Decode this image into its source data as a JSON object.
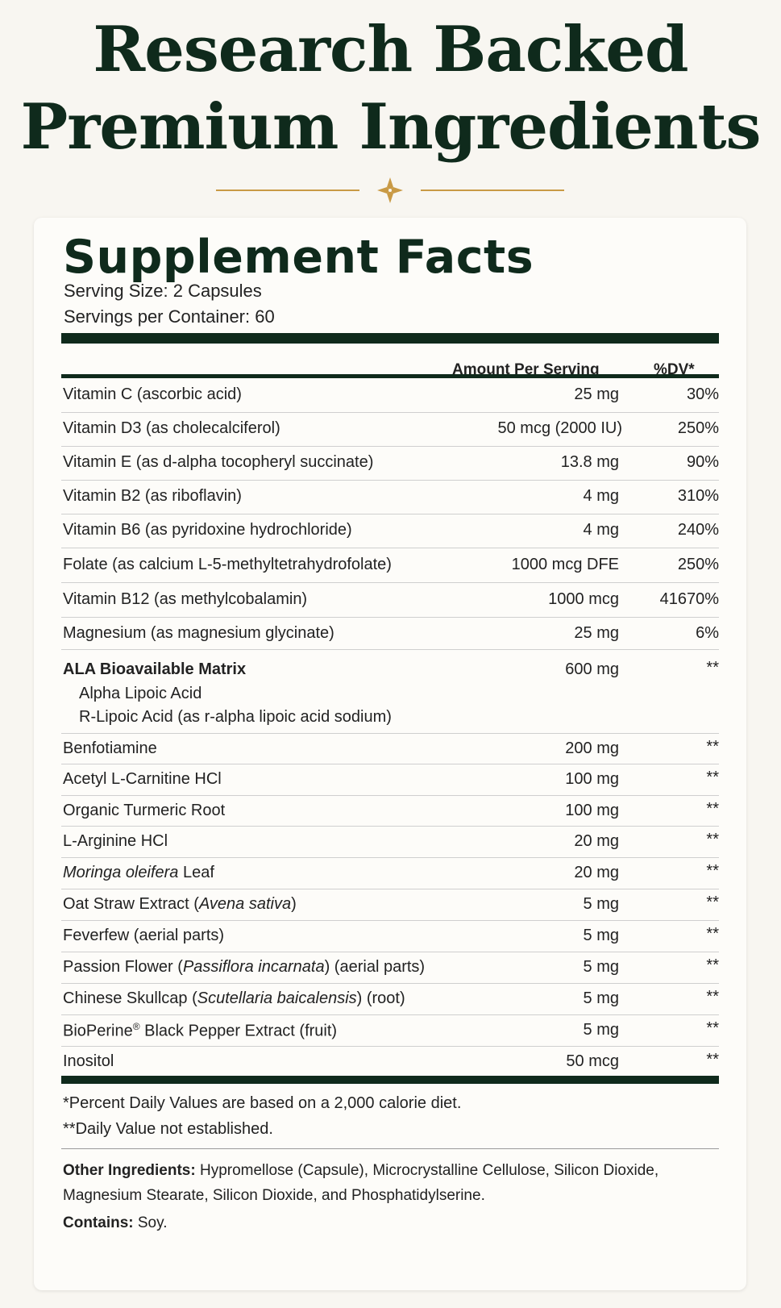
{
  "headline": {
    "line1": "Research Backed",
    "line2": "Premium Ingredients"
  },
  "facts": {
    "title": "Supplement Facts",
    "serving_size": "Serving Size: 2 Capsules",
    "servings_per_container": "Servings per Container: 60",
    "col_amount": "Amount Per Serving",
    "col_dv": "%DV*"
  },
  "rows": [
    {
      "name": "Vitamin C (ascorbic acid)",
      "amount": "25 mg",
      "dv": "30%"
    },
    {
      "name": "Vitamin D3 (as cholecalciferol)",
      "amount": "50 mcg (2000 IU)",
      "dv": "250%"
    },
    {
      "name": "Vitamin E (as d-alpha tocopheryl succinate)",
      "amount": "13.8 mg",
      "dv": "90%"
    },
    {
      "name": "Vitamin B2 (as riboflavin)",
      "amount": "4 mg",
      "dv": "310%"
    },
    {
      "name": "Vitamin B6 (as pyridoxine hydrochloride)",
      "amount": "4 mg",
      "dv": "240%"
    },
    {
      "name": "Folate (as calcium L-5-methyltetrahydrofolate)",
      "amount": "1000 mcg DFE",
      "dv": "250%"
    },
    {
      "name": "Vitamin B12 (as methylcobalamin)",
      "amount": "1000 mcg",
      "dv": "41670%"
    },
    {
      "name": "Magnesium (as magnesium glycinate)",
      "amount": "25 mg",
      "dv": "6%"
    }
  ],
  "matrix": {
    "name": "ALA Bioavailable Matrix",
    "amount": "600 mg",
    "dv": "**",
    "sub1": "Alpha Lipoic Acid",
    "sub2": "R-Lipoic Acid (as r-alpha lipoic acid sodium)"
  },
  "rows2": [
    {
      "name": "Benfotiamine",
      "amount": "200 mg",
      "dv": "**"
    },
    {
      "name": "Acetyl L-Carnitine HCl",
      "amount": "100 mg",
      "dv": "**"
    },
    {
      "name": "Organic Turmeric Root",
      "amount": "100 mg",
      "dv": "**"
    },
    {
      "name": "L-Arginine HCl",
      "amount": "20 mg",
      "dv": "**"
    },
    {
      "name_italic": "Moringa oleifera",
      "name_rest": " Leaf",
      "amount": "20 mg",
      "dv": "**"
    },
    {
      "name_pre": "Oat Straw Extract (",
      "name_italic": "Avena sativa",
      "name_post": ")",
      "amount": "5 mg",
      "dv": "**"
    },
    {
      "name": "Feverfew (aerial parts)",
      "amount": "5 mg",
      "dv": "**"
    },
    {
      "name_pre": "Passion Flower (",
      "name_italic": "Passiflora incarnata",
      "name_post": ") (aerial parts)",
      "amount": "5 mg",
      "dv": "**"
    },
    {
      "name_pre": "Chinese Skullcap (",
      "name_italic": "Scutellaria baicalensis",
      "name_post": ") (root)",
      "amount": "5 mg",
      "dv": "**"
    },
    {
      "name_pre": "BioPerine",
      "name_sup": "®",
      "name_post": " Black Pepper Extract (fruit)",
      "amount": "5 mg",
      "dv": "**"
    },
    {
      "name": "Inositol",
      "amount": "50 mcg",
      "dv": "**"
    }
  ],
  "footnotes": {
    "dv_note": "*Percent Daily Values are based on a 2,000 calorie diet.",
    "not_established": "**Daily Value not established."
  },
  "other": {
    "label": "Other Ingredients:",
    "text": " Hypromellose (Capsule), Microcrystalline Cellulose, Silicon Dioxide, Magnesium Stearate, Silicon Dioxide, and Phosphatidylserine.",
    "contains_label": "Contains:",
    "contains_text": " Soy."
  },
  "colors": {
    "dark_green": "#0f2a1c",
    "gold": "#c99a45",
    "background": "#f8f6f1",
    "card": "#fdfcf9"
  }
}
